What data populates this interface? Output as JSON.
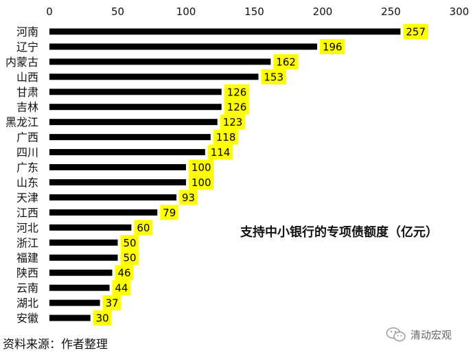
{
  "chart_data": {
    "type": "bar",
    "orientation": "horizontal",
    "title": "支持中小银行的专项债额度（亿元）",
    "categories": [
      "河南",
      "辽宁",
      "内蒙古",
      "山西",
      "甘肃",
      "吉林",
      "黑龙江",
      "广西",
      "四川",
      "广东",
      "山东",
      "天津",
      "江西",
      "河北",
      "浙江",
      "福建",
      "陕西",
      "云南",
      "湖北",
      "安徽"
    ],
    "values": [
      257,
      196,
      162,
      153,
      126,
      126,
      123,
      118,
      114,
      100,
      100,
      93,
      79,
      60,
      50,
      50,
      46,
      44,
      37,
      30
    ],
    "xlim": [
      0,
      300
    ],
    "xticks": [
      0,
      50,
      100,
      150,
      200,
      250,
      300
    ],
    "x_axis_position": "top",
    "grid": false,
    "legend": "none",
    "bar_color": "#000000",
    "label_bg_color": "#ffff00"
  },
  "footer": {
    "source": "资料来源：作者整理",
    "watermark": "清动宏观",
    "watermark_icon": "wechat-icon"
  }
}
